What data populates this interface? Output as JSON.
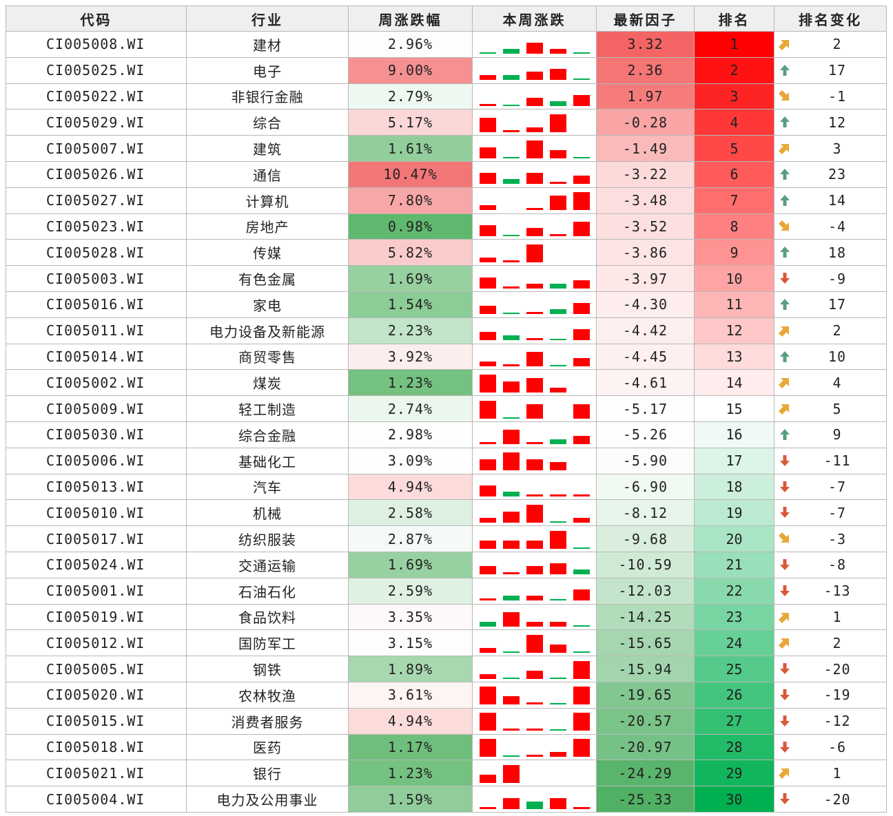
{
  "table": {
    "headers": [
      "代码",
      "行业",
      "周涨跌幅",
      "本周涨跌",
      "最新因子",
      "排名",
      "排名变化"
    ],
    "colors": {
      "red": "#ff0000",
      "green": "#00b050",
      "arrow_up_green": "#5a9e7e",
      "arrow_down_red": "#d9583a",
      "arrow_diag_orange": "#e8a838",
      "header_bg": "#efefef",
      "grid": "#b8b8b8"
    },
    "rows": [
      {
        "code": "CI005008.WI",
        "industry": "建材",
        "weekly_change": "2.96%",
        "factor": "3.32",
        "rank": "1",
        "rank_change": "2",
        "rank_change_icon": "up-right-arrow-icon",
        "week_bars": [
          "g1",
          "g2",
          "r4",
          "r2",
          "g1"
        ]
      },
      {
        "code": "CI005025.WI",
        "industry": "电子",
        "weekly_change": "9.00%",
        "factor": "2.36",
        "rank": "2",
        "rank_change": "17",
        "rank_change_icon": "up-arrow-icon",
        "week_bars": [
          "r2",
          "g2",
          "r3",
          "r4",
          "g1"
        ]
      },
      {
        "code": "CI005022.WI",
        "industry": "非银行金融",
        "weekly_change": "2.79%",
        "factor": "1.97",
        "rank": "3",
        "rank_change": "-1",
        "rank_change_icon": "down-right-arrow-icon",
        "week_bars": [
          "r1",
          "g1",
          "r3",
          "g2",
          "r4"
        ]
      },
      {
        "code": "CI005029.WI",
        "industry": "综合",
        "weekly_change": "5.17%",
        "factor": "-0.28",
        "rank": "4",
        "rank_change": "12",
        "rank_change_icon": "up-arrow-icon",
        "week_bars": [
          "r5",
          "r1",
          "r2",
          "r6",
          "e"
        ]
      },
      {
        "code": "CI005007.WI",
        "industry": "建筑",
        "weekly_change": "1.61%",
        "factor": "-1.49",
        "rank": "5",
        "rank_change": "3",
        "rank_change_icon": "up-right-arrow-icon",
        "week_bars": [
          "r4",
          "g1",
          "r6",
          "r3",
          "g1"
        ]
      },
      {
        "code": "CI005026.WI",
        "industry": "通信",
        "weekly_change": "10.47%",
        "factor": "-3.22",
        "rank": "6",
        "rank_change": "23",
        "rank_change_icon": "up-arrow-icon",
        "week_bars": [
          "r4",
          "g2",
          "r4",
          "r1",
          "r3"
        ]
      },
      {
        "code": "CI005027.WI",
        "industry": "计算机",
        "weekly_change": "7.80%",
        "factor": "-3.48",
        "rank": "7",
        "rank_change": "14",
        "rank_change_icon": "up-arrow-icon",
        "week_bars": [
          "r2",
          "e",
          "r1",
          "r5",
          "r6"
        ]
      },
      {
        "code": "CI005023.WI",
        "industry": "房地产",
        "weekly_change": "0.98%",
        "factor": "-3.52",
        "rank": "8",
        "rank_change": "-4",
        "rank_change_icon": "down-right-arrow-icon",
        "week_bars": [
          "r4",
          "g1",
          "r3",
          "r1",
          "r5"
        ]
      },
      {
        "code": "CI005028.WI",
        "industry": "传媒",
        "weekly_change": "5.82%",
        "factor": "-3.86",
        "rank": "9",
        "rank_change": "18",
        "rank_change_icon": "up-arrow-icon",
        "week_bars": [
          "r2",
          "r1",
          "r6",
          "e",
          "e"
        ]
      },
      {
        "code": "CI005003.WI",
        "industry": "有色金属",
        "weekly_change": "1.69%",
        "factor": "-3.97",
        "rank": "10",
        "rank_change": "-9",
        "rank_change_icon": "down-arrow-icon",
        "week_bars": [
          "r4",
          "r1",
          "r2",
          "g2",
          "r3"
        ]
      },
      {
        "code": "CI005016.WI",
        "industry": "家电",
        "weekly_change": "1.54%",
        "factor": "-4.30",
        "rank": "11",
        "rank_change": "17",
        "rank_change_icon": "up-arrow-icon",
        "week_bars": [
          "r3",
          "g1",
          "r1",
          "g2",
          "r4"
        ]
      },
      {
        "code": "CI005011.WI",
        "industry": "电力设备及新能源",
        "weekly_change": "2.23%",
        "factor": "-4.42",
        "rank": "12",
        "rank_change": "2",
        "rank_change_icon": "up-right-arrow-icon",
        "week_bars": [
          "r3",
          "g2",
          "r1",
          "g1",
          "r4"
        ]
      },
      {
        "code": "CI005014.WI",
        "industry": "商贸零售",
        "weekly_change": "3.92%",
        "factor": "-4.45",
        "rank": "13",
        "rank_change": "10",
        "rank_change_icon": "up-arrow-icon",
        "week_bars": [
          "r2",
          "r1",
          "r5",
          "g1",
          "r3"
        ]
      },
      {
        "code": "CI005002.WI",
        "industry": "煤炭",
        "weekly_change": "1.23%",
        "factor": "-4.61",
        "rank": "14",
        "rank_change": "4",
        "rank_change_icon": "up-right-arrow-icon",
        "week_bars": [
          "r6",
          "r4",
          "r5",
          "r2",
          "e"
        ]
      },
      {
        "code": "CI005009.WI",
        "industry": "轻工制造",
        "weekly_change": "2.74%",
        "factor": "-5.17",
        "rank": "15",
        "rank_change": "5",
        "rank_change_icon": "up-right-arrow-icon",
        "week_bars": [
          "r6",
          "g1",
          "r5",
          "e",
          "r5"
        ]
      },
      {
        "code": "CI005030.WI",
        "industry": "综合金融",
        "weekly_change": "2.98%",
        "factor": "-5.26",
        "rank": "16",
        "rank_change": "9",
        "rank_change_icon": "up-arrow-icon",
        "week_bars": [
          "r1",
          "r5",
          "r1",
          "g2",
          "r3"
        ]
      },
      {
        "code": "CI005006.WI",
        "industry": "基础化工",
        "weekly_change": "3.09%",
        "factor": "-5.90",
        "rank": "17",
        "rank_change": "-11",
        "rank_change_icon": "down-arrow-icon",
        "week_bars": [
          "r4",
          "r6",
          "r4",
          "r3",
          "e"
        ]
      },
      {
        "code": "CI005013.WI",
        "industry": "汽车",
        "weekly_change": "4.94%",
        "factor": "-6.90",
        "rank": "18",
        "rank_change": "-7",
        "rank_change_icon": "down-arrow-icon",
        "week_bars": [
          "r4",
          "g2",
          "r1",
          "r1",
          "r1"
        ]
      },
      {
        "code": "CI005010.WI",
        "industry": "机械",
        "weekly_change": "2.58%",
        "factor": "-8.12",
        "rank": "19",
        "rank_change": "-7",
        "rank_change_icon": "down-arrow-icon",
        "week_bars": [
          "r2",
          "r4",
          "r6",
          "g1",
          "r2"
        ]
      },
      {
        "code": "CI005017.WI",
        "industry": "纺织服装",
        "weekly_change": "2.87%",
        "factor": "-9.68",
        "rank": "20",
        "rank_change": "-3",
        "rank_change_icon": "down-right-arrow-icon",
        "week_bars": [
          "r3",
          "r3",
          "r3",
          "r6",
          "g1"
        ]
      },
      {
        "code": "CI005024.WI",
        "industry": "交通运输",
        "weekly_change": "1.69%",
        "factor": "-10.59",
        "rank": "21",
        "rank_change": "-8",
        "rank_change_icon": "down-arrow-icon",
        "week_bars": [
          "r3",
          "r1",
          "r3",
          "r4",
          "g2"
        ]
      },
      {
        "code": "CI005001.WI",
        "industry": "石油石化",
        "weekly_change": "2.59%",
        "factor": "-12.03",
        "rank": "22",
        "rank_change": "-13",
        "rank_change_icon": "down-arrow-icon",
        "week_bars": [
          "r1",
          "g2",
          "r2",
          "g1",
          "r4"
        ]
      },
      {
        "code": "CI005019.WI",
        "industry": "食品饮料",
        "weekly_change": "3.35%",
        "factor": "-14.25",
        "rank": "23",
        "rank_change": "1",
        "rank_change_icon": "up-right-arrow-icon",
        "week_bars": [
          "g2",
          "r5",
          "r2",
          "r2",
          "g1"
        ]
      },
      {
        "code": "CI005012.WI",
        "industry": "国防军工",
        "weekly_change": "3.15%",
        "factor": "-15.65",
        "rank": "24",
        "rank_change": "2",
        "rank_change_icon": "up-right-arrow-icon",
        "week_bars": [
          "r2",
          "g1",
          "r6",
          "r3",
          "g1"
        ]
      },
      {
        "code": "CI005005.WI",
        "industry": "钢铁",
        "weekly_change": "1.89%",
        "factor": "-15.94",
        "rank": "25",
        "rank_change": "-20",
        "rank_change_icon": "down-arrow-icon",
        "week_bars": [
          "r2",
          "g1",
          "r3",
          "g1",
          "r6"
        ]
      },
      {
        "code": "CI005020.WI",
        "industry": "农林牧渔",
        "weekly_change": "3.61%",
        "factor": "-19.65",
        "rank": "26",
        "rank_change": "-19",
        "rank_change_icon": "down-arrow-icon",
        "week_bars": [
          "r6",
          "r3",
          "r1",
          "g1",
          "r6"
        ]
      },
      {
        "code": "CI005015.WI",
        "industry": "消费者服务",
        "weekly_change": "4.94%",
        "factor": "-20.57",
        "rank": "27",
        "rank_change": "-12",
        "rank_change_icon": "down-arrow-icon",
        "week_bars": [
          "r6",
          "r1",
          "r1",
          "g1",
          "r6"
        ]
      },
      {
        "code": "CI005018.WI",
        "industry": "医药",
        "weekly_change": "1.17%",
        "factor": "-20.97",
        "rank": "28",
        "rank_change": "-6",
        "rank_change_icon": "down-arrow-icon",
        "week_bars": [
          "r6",
          "g1",
          "r1",
          "r2",
          "r6"
        ]
      },
      {
        "code": "CI005021.WI",
        "industry": "银行",
        "weekly_change": "1.23%",
        "factor": "-24.29",
        "rank": "29",
        "rank_change": "1",
        "rank_change_icon": "up-right-arrow-icon",
        "week_bars": [
          "r3",
          "r6",
          "e",
          "e",
          "e"
        ]
      },
      {
        "code": "CI005004.WI",
        "industry": "电力及公用事业",
        "weekly_change": "1.59%",
        "factor": "-25.33",
        "rank": "30",
        "rank_change": "-20",
        "rank_change_icon": "down-arrow-icon",
        "week_bars": [
          "r1",
          "r4",
          "g3",
          "r4",
          "r1"
        ]
      }
    ]
  }
}
